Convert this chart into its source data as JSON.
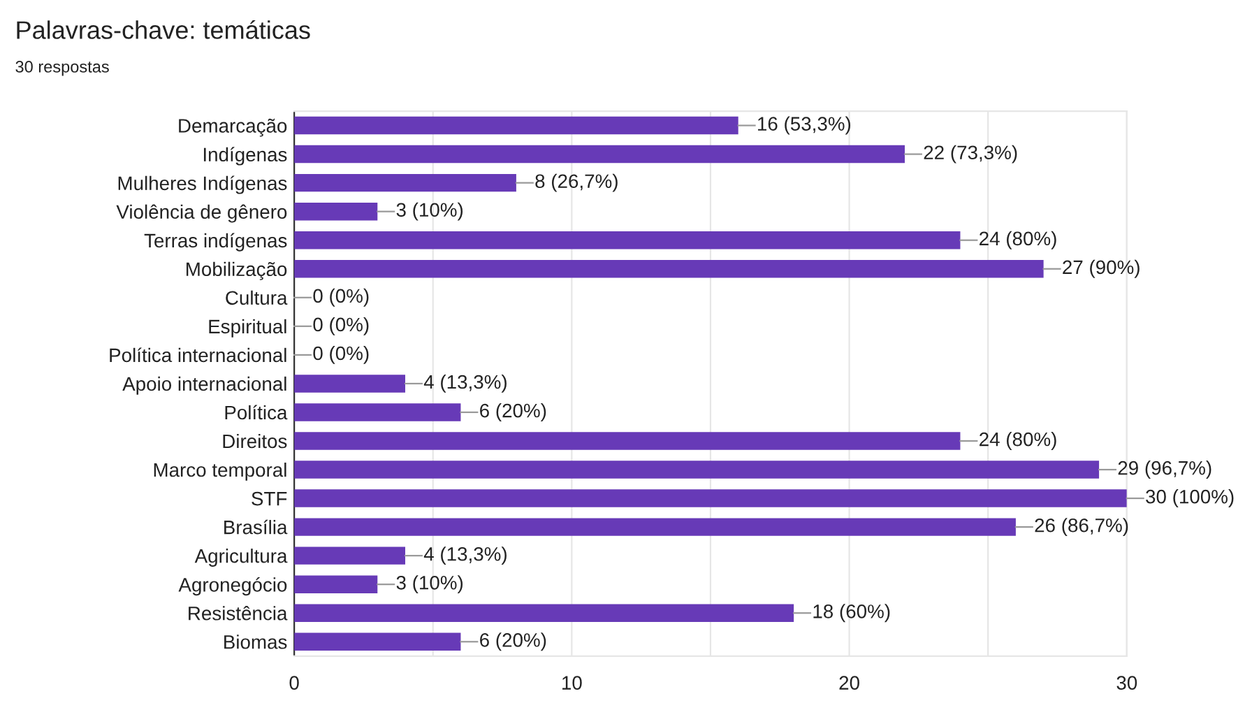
{
  "chart_data": {
    "type": "bar",
    "orientation": "horizontal",
    "title": "Palavras-chave: temáticas",
    "subtitle": "30 respostas",
    "categories": [
      "Demarcação",
      "Indígenas",
      "Mulheres Indígenas",
      "Violência de gênero",
      "Terras indígenas",
      "Mobilização",
      "Cultura",
      "Espiritual",
      "Política internacional",
      "Apoio internacional",
      "Política",
      "Direitos",
      "Marco temporal",
      "STF",
      "Brasília",
      "Agricultura",
      "Agronegócio",
      "Resistência",
      "Biomas"
    ],
    "values": [
      16,
      22,
      8,
      3,
      24,
      27,
      0,
      0,
      0,
      4,
      6,
      24,
      29,
      30,
      26,
      4,
      3,
      18,
      6
    ],
    "value_labels": [
      "16 (53,3%)",
      "22 (73,3%)",
      "8 (26,7%)",
      "3 (10%)",
      "24 (80%)",
      "27 (90%)",
      "0 (0%)",
      "0 (0%)",
      "0 (0%)",
      "4 (13,3%)",
      "6 (20%)",
      "24 (80%)",
      "29 (96,7%)",
      "30 (100%)",
      "26 (86,7%)",
      "4 (13,3%)",
      "3 (10%)",
      "18 (60%)",
      "6 (20%)"
    ],
    "color": "#673ab7",
    "xlim": [
      0,
      30
    ],
    "xticks": [
      0,
      {
        "value": 5,
        "label": null
      },
      10,
      {
        "value": 15,
        "label": null
      },
      20,
      {
        "value": 25,
        "label": null
      },
      30
    ],
    "grid": "x"
  }
}
